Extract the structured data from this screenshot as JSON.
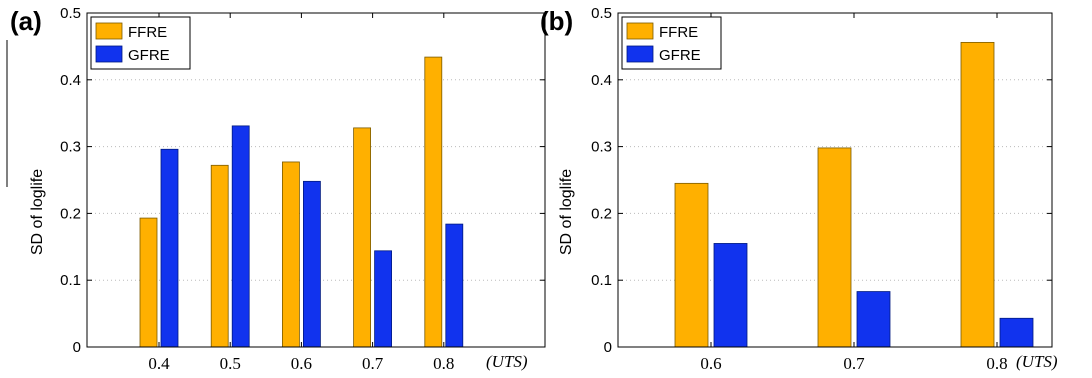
{
  "chart_data": [
    {
      "panel": "(a)",
      "type": "bar",
      "categories": [
        "0.4",
        "0.5",
        "0.6",
        "0.7",
        "0.8"
      ],
      "series": [
        {
          "name": "FFRE",
          "values": [
            0.193,
            0.272,
            0.277,
            0.328,
            0.434
          ]
        },
        {
          "name": "GFRE",
          "values": [
            0.296,
            0.331,
            0.248,
            0.144,
            0.184
          ]
        }
      ],
      "ylabel": "SD of loglife",
      "xlabel": "(UTS)",
      "ylim": [
        0,
        0.5
      ],
      "yticks": [
        "0",
        "0.1",
        "0.2",
        "0.3",
        "0.4",
        "0.5"
      ],
      "grid": "y-dotted",
      "legend": "top-left"
    },
    {
      "panel": "(b)",
      "type": "bar",
      "categories": [
        "0.6",
        "0.7",
        "0.8"
      ],
      "series": [
        {
          "name": "FFRE",
          "values": [
            0.245,
            0.298,
            0.456
          ]
        },
        {
          "name": "GFRE",
          "values": [
            0.155,
            0.083,
            0.043
          ]
        }
      ],
      "ylabel": "SD of loglife",
      "xlabel": "(UTS)",
      "ylim": [
        0,
        0.5
      ],
      "yticks": [
        "0",
        "0.1",
        "0.2",
        "0.3",
        "0.4",
        "0.5"
      ],
      "grid": "y-dotted",
      "legend": "top-left"
    }
  ],
  "colors": {
    "FFRE": "#FFB000",
    "GFRE": "#1133EE",
    "bar_edge": "#7a5a00",
    "gfre_edge": "#001a80"
  }
}
